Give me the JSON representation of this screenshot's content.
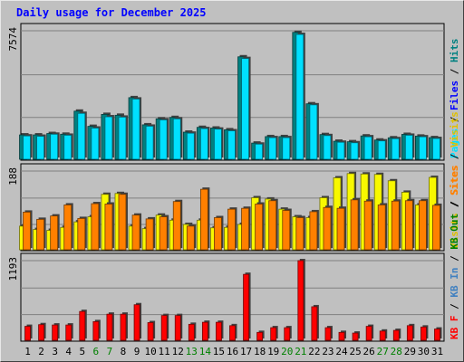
{
  "chart_data": [
    {
      "type": "bar",
      "title": "Daily usage for December 2025",
      "categories": [
        "1",
        "2",
        "3",
        "4",
        "5",
        "6",
        "7",
        "8",
        "9",
        "10",
        "11",
        "12",
        "13",
        "14",
        "15",
        "16",
        "17",
        "18",
        "19",
        "20",
        "21",
        "22",
        "23",
        "24",
        "25",
        "26",
        "27",
        "28",
        "29",
        "30",
        "31"
      ],
      "weekend_categories": [
        "6",
        "7",
        "13",
        "14",
        "20",
        "21",
        "27",
        "28"
      ],
      "colors": {
        "pages": "#00e0ff",
        "files": "#2aa8b8",
        "hits": "#008080",
        "visits": "#f8f800",
        "sites": "#ff8000",
        "kb_in": "#4080c0",
        "kb_out": "#008000",
        "kb": "#ff0000",
        "title": "#0000ff",
        "weekday_label": "#000000",
        "weekend_label": "#008000"
      },
      "panels": [
        {
          "name": "pages_files_hits",
          "ymax_label": "7574",
          "ylim": [
            0,
            7574
          ],
          "legend": [
            {
              "text": "Pages",
              "color": "#00e0ff"
            },
            {
              "text": " / ",
              "color": "#000000"
            },
            {
              "text": "Files",
              "color": "#0000ff"
            },
            {
              "text": " / ",
              "color": "#000000"
            },
            {
              "text": "Hits",
              "color": "#008080"
            }
          ],
          "series": [
            {
              "name": "Hits",
              "values": [
                1480,
                1480,
                1560,
                1520,
                2870,
                1980,
                2680,
                2630,
                3660,
                2070,
                2420,
                2500,
                1640,
                1920,
                1880,
                1780,
                6050,
                1000,
                1380,
                1380,
                7480,
                3300,
                1500,
                1110,
                1080,
                1420,
                1180,
                1310,
                1510,
                1410,
                1320
              ]
            },
            {
              "name": "Files",
              "values": [
                1420,
                1400,
                1520,
                1460,
                2740,
                1880,
                2540,
                2520,
                3580,
                1990,
                2360,
                2420,
                1580,
                1850,
                1820,
                1720,
                5950,
                940,
                1320,
                1320,
                7360,
                3240,
                1440,
                1050,
                1020,
                1370,
                1130,
                1260,
                1460,
                1370,
                1270
              ]
            }
          ]
        },
        {
          "name": "visits_sites",
          "ymax_label": "188",
          "ylim": [
            0,
            188
          ],
          "legend": [
            {
              "text": "Visits",
              "color": "#e0c000"
            },
            {
              "text": " / ",
              "color": "#000000"
            },
            {
              "text": "Sites",
              "color": "#ff8000"
            }
          ],
          "series": [
            {
              "name": "Visits",
              "values": [
                58,
                50,
                48,
                55,
                68,
                80,
                133,
                135,
                58,
                52,
                84,
                72,
                62,
                72,
                54,
                55,
                62,
                125,
                122,
                98,
                80,
                78,
                125,
                172,
                182,
                181,
                180,
                165,
                138,
                108,
                173
              ]
            },
            {
              "name": "Sites",
              "values": [
                91,
                74,
                82,
                108,
                76,
                111,
                110,
                133,
                84,
                75,
                80,
                116,
                58,
                145,
                78,
                98,
                100,
                110,
                118,
                95,
                78,
                92,
                102,
                100,
                120,
                117,
                108,
                117,
                118,
                118,
                107
              ]
            }
          ]
        },
        {
          "name": "kb",
          "ymax_label": "1193",
          "ylim": [
            0,
            1193
          ],
          "legend": [
            {
              "text": "KB F",
              "color": "#ff0000"
            },
            {
              "text": " / ",
              "color": "#000000"
            },
            {
              "text": "KB In",
              "color": "#4080c0"
            },
            {
              "text": " / ",
              "color": "#000000"
            },
            {
              "text": "KB Out",
              "color": "#008000"
            },
            {
              "text": " / ",
              "color": "#000000"
            },
            {
              "text": "Sites",
              "color": "#ff8000"
            },
            {
              "text": " / ",
              "color": "#000000"
            },
            {
              "text": "Visits",
              "color": "#e0c000"
            }
          ],
          "series": [
            {
              "name": "KB F",
              "values": [
                220,
                245,
                240,
                240,
                440,
                290,
                400,
                400,
                540,
                275,
                380,
                380,
                250,
                280,
                280,
                230,
                990,
                130,
                200,
                200,
                1193,
                510,
                200,
                130,
                120,
                220,
                150,
                160,
                230,
                210,
                180
              ]
            }
          ]
        }
      ]
    }
  ]
}
